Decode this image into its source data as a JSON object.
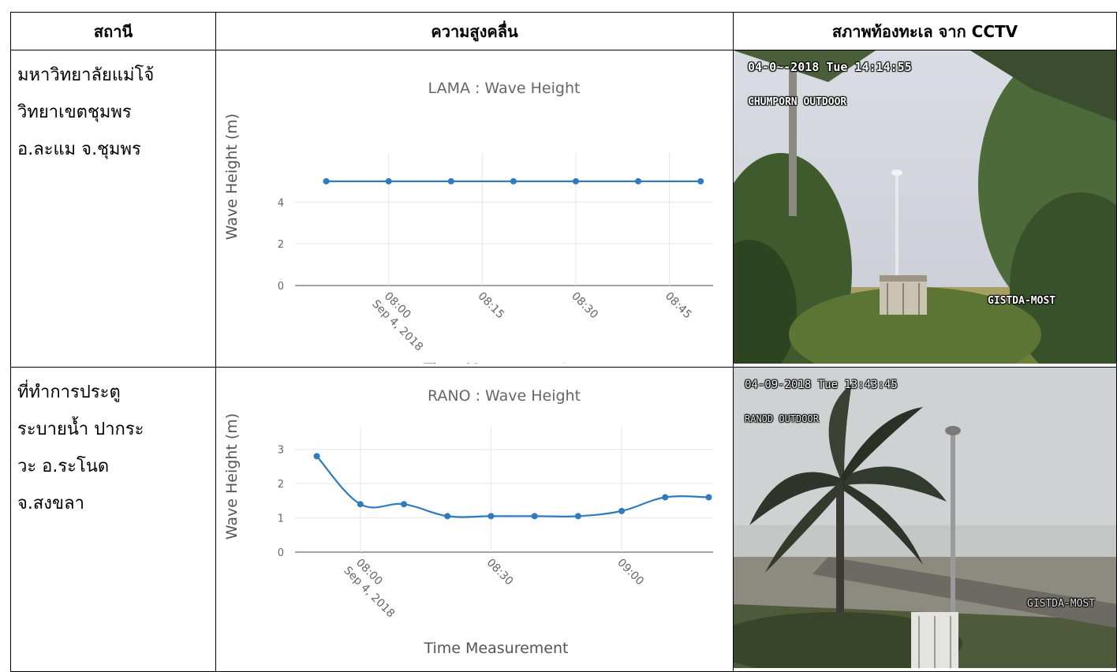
{
  "headers": {
    "station": "สถานี",
    "wave": "ความสูงคลื่น",
    "cctv": "สภาพท้องทะเล จาก CCTV"
  },
  "rows": [
    {
      "station_lines": [
        "มหาวิทยาลัยแม่โจ้",
        "วิทยาเขตชุมพร",
        "อ.ละแม จ.ชุมพร"
      ],
      "cctv": {
        "timestamp": "04-0~-2018 Tue 14:14:55",
        "location": "CHUMPORN OUTDOOR",
        "watermark": "GISTDA-MOST"
      }
    },
    {
      "station_lines": [
        "ที่ทำการประตู",
        "ระบายน้ำ ปากระ",
        "วะ อ.ระโนด",
        "จ.สงขลา"
      ],
      "cctv": {
        "timestamp": "04-09-2018 Tue 13:43:45",
        "location": "RANOD OUTDOOR",
        "watermark": "GISTDA-MOST"
      }
    }
  ],
  "chart_data": [
    {
      "type": "line",
      "title": "LAMA : Wave Height",
      "xlabel": "Time Measurement",
      "ylabel": "Wave Height (m)",
      "x": [
        "07:50",
        "08:00",
        "08:10",
        "08:20",
        "08:30",
        "08:40",
        "08:50"
      ],
      "values": [
        5,
        5,
        5,
        5,
        5,
        5,
        5
      ],
      "ylim": [
        0,
        5.6
      ],
      "y_ticks": [
        0,
        2,
        4
      ],
      "x_ticks": [
        "08:00",
        "08:15",
        "08:30",
        "08:45"
      ],
      "x_tick_date": "Sep 4, 2018",
      "color": "#2f7bbf",
      "grid": true
    },
    {
      "type": "line",
      "title": "RANO : Wave Height",
      "xlabel": "Time Measurement",
      "ylabel": "Wave Height (m)",
      "x": [
        "07:50",
        "08:00",
        "08:10",
        "08:20",
        "08:30",
        "08:40",
        "08:50",
        "09:00",
        "09:10",
        "09:20"
      ],
      "values": [
        2.8,
        1.4,
        1.4,
        1.05,
        1.05,
        1.05,
        1.05,
        1.2,
        1.6,
        1.6
      ],
      "ylim": [
        0,
        3.2
      ],
      "y_ticks": [
        0,
        1,
        2,
        3
      ],
      "x_ticks": [
        "08:00",
        "08:30",
        "09:00"
      ],
      "x_tick_date": "Sep 4, 2018",
      "color": "#2f7bbf",
      "grid": true
    }
  ]
}
